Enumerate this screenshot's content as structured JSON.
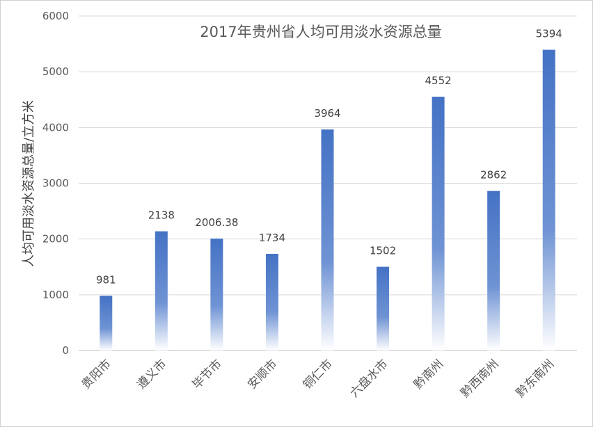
{
  "chart_data": {
    "type": "bar",
    "title": "2017年贵州省人均可用淡水资源总量",
    "xlabel": "",
    "ylabel": "人均可用淡水资源总量/立方米",
    "categories": [
      "贵阳市",
      "遵义市",
      "毕节市",
      "安顺市",
      "铜仁市",
      "六盘水市",
      "黔南州",
      "黔西南州",
      "黔东南州"
    ],
    "values": [
      981,
      2138,
      2006.38,
      1734,
      3964,
      1502,
      4552,
      2862,
      5394
    ],
    "data_labels": [
      "981",
      "2138",
      "2006.38",
      "1734",
      "3964",
      "1502",
      "4552",
      "2862",
      "5394"
    ],
    "ylim": [
      0,
      6000
    ],
    "yticks": [
      "0",
      "1000",
      "2000",
      "3000",
      "4000",
      "5000",
      "6000"
    ],
    "grid": true,
    "legend": "none",
    "bar_color": "#4472c4",
    "bar_fill": "gradient to white at base"
  }
}
